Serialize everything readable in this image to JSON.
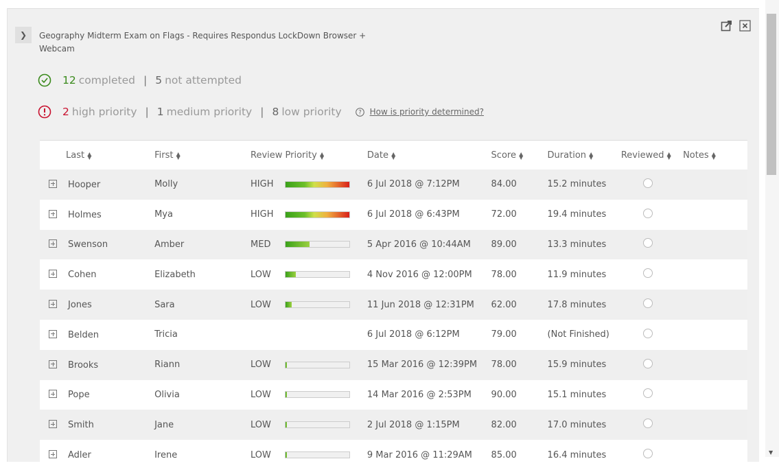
{
  "exam": {
    "title": "Geography Midterm Exam on Flags - Requires Respondus LockDown Browser + Webcam",
    "completed_count": "12",
    "completed_label": "completed",
    "not_attempted_count": "5",
    "not_attempted_label": "not attempted",
    "high_count": "2",
    "high_label": "high priority",
    "medium_count": "1",
    "medium_label": "medium priority",
    "low_count": "8",
    "low_label": "low priority",
    "help_link": "How is priority determined?"
  },
  "icons": {
    "collapse": "chevron-down-icon",
    "open": "external-link-icon",
    "close": "close-icon"
  },
  "colors": {
    "completed": "#3a8a1c",
    "priority": "#c8102e"
  },
  "table": {
    "headers": [
      "Last",
      "First",
      "Review Priority",
      "Date",
      "Score",
      "Duration",
      "Reviewed",
      "Notes"
    ],
    "rows": [
      {
        "last": "Hooper",
        "first": "Molly",
        "priority": "HIGH",
        "level": 100,
        "date": "6 Jul 2018 @ 7:12PM",
        "score": "84.00",
        "duration": "15.2 minutes"
      },
      {
        "last": "Holmes",
        "first": "Mya",
        "priority": "HIGH",
        "level": 100,
        "date": "6 Jul 2018 @ 6:43PM",
        "score": "72.00",
        "duration": "19.4 minutes"
      },
      {
        "last": "Swenson",
        "first": "Amber",
        "priority": "MED",
        "level": 38,
        "date": "5 Apr 2016 @ 10:44AM",
        "score": "89.00",
        "duration": "13.3 minutes"
      },
      {
        "last": "Cohen",
        "first": "Elizabeth",
        "priority": "LOW",
        "level": 16,
        "date": "4 Nov 2016 @ 12:00PM",
        "score": "78.00",
        "duration": "11.9 minutes"
      },
      {
        "last": "Jones",
        "first": "Sara",
        "priority": "LOW",
        "level": 10,
        "date": "11 Jun 2018 @ 12:31PM",
        "score": "62.00",
        "duration": "17.8 minutes"
      },
      {
        "last": "Belden",
        "first": "Tricia",
        "priority": "",
        "level": null,
        "date": "6 Jul 2018 @ 6:12PM",
        "score": "79.00",
        "duration": "(Not Finished)"
      },
      {
        "last": "Brooks",
        "first": "Riann",
        "priority": "LOW",
        "level": 2,
        "date": "15 Mar 2016 @ 12:39PM",
        "score": "78.00",
        "duration": "15.9 minutes"
      },
      {
        "last": "Pope",
        "first": "Olivia",
        "priority": "LOW",
        "level": 2,
        "date": "14 Mar 2016 @ 2:53PM",
        "score": "90.00",
        "duration": "15.1 minutes"
      },
      {
        "last": "Smith",
        "first": "Jane",
        "priority": "LOW",
        "level": 2,
        "date": "2 Jul 2018 @ 1:15PM",
        "score": "82.00",
        "duration": "17.0 minutes"
      },
      {
        "last": "Adler",
        "first": "Irene",
        "priority": "LOW",
        "level": 2,
        "date": "9 Mar 2016 @ 11:29AM",
        "score": "85.00",
        "duration": "16.4 minutes"
      }
    ]
  }
}
